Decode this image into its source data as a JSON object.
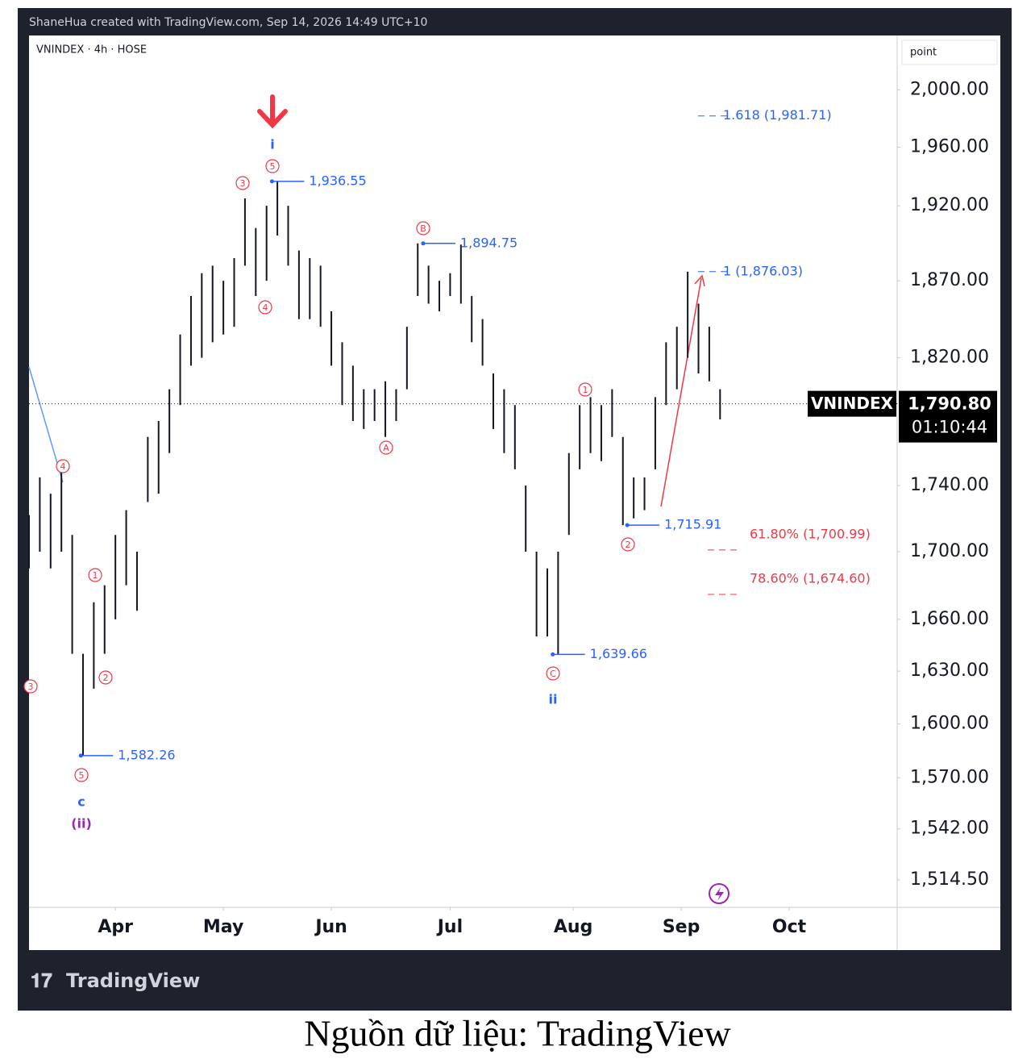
{
  "chart_data": {
    "type": "ohlc",
    "header": "ShaneHua created with TradingView.com, Sep 14, 2026 14:49 UTC+10",
    "symbol": "VNINDEX · 4h · HOSE",
    "axis_unit": "point",
    "logo": "TradingView",
    "log_scale": true,
    "color": "#131722",
    "high": [
      1722,
      1745,
      1735,
      1748,
      1710,
      1640,
      1670,
      1680,
      1710,
      1725,
      1700,
      1770,
      1780,
      1800,
      1835,
      1860,
      1875,
      1880,
      1870,
      1885,
      1925,
      1905,
      1920,
      1936.55,
      1920,
      1890,
      1885,
      1880,
      1850,
      1830,
      1815,
      1800,
      1800,
      1805,
      1800,
      1840,
      1894.75,
      1880,
      1870,
      1875,
      1894,
      1860,
      1845,
      1810,
      1800,
      1790,
      1740,
      1700,
      1690,
      1700,
      1760,
      1790,
      1795,
      1790,
      1800,
      1770,
      1745,
      1745,
      1795,
      1830,
      1840,
      1876,
      1855,
      1840,
      1800
    ],
    "low": [
      1690,
      1700,
      1690,
      1700,
      1640,
      1582.26,
      1620,
      1640,
      1660,
      1680,
      1665,
      1730,
      1735,
      1760,
      1790,
      1815,
      1820,
      1830,
      1835,
      1840,
      1880,
      1860,
      1870,
      1900,
      1880,
      1845,
      1845,
      1840,
      1815,
      1790,
      1780,
      1775,
      1780,
      1770,
      1780,
      1800,
      1860,
      1855,
      1850,
      1860,
      1855,
      1830,
      1815,
      1775,
      1760,
      1750,
      1700,
      1650,
      1650,
      1639.66,
      1710,
      1750,
      1760,
      1755,
      1770,
      1715.91,
      1720,
      1725,
      1750,
      1790,
      1800,
      1820,
      1810,
      1805,
      1781
    ],
    "xlim": [
      0,
      80.4
    ],
    "xticks": [
      {
        "value": 8,
        "label": "Apr"
      },
      {
        "value": 18,
        "label": "May"
      },
      {
        "value": 28,
        "label": "Jun"
      },
      {
        "value": 39,
        "label": "Jul"
      },
      {
        "value": 50.4,
        "label": "Aug"
      },
      {
        "value": 60.4,
        "label": "Sep"
      },
      {
        "value": 70.4,
        "label": "Oct"
      }
    ],
    "ylim": [
      1500,
      2038
    ],
    "yticks": [
      {
        "value": 2000,
        "label": "2,000.00"
      },
      {
        "value": 1960,
        "label": "1,960.00"
      },
      {
        "value": 1920,
        "label": "1,920.00"
      },
      {
        "value": 1870,
        "label": "1,870.00"
      },
      {
        "value": 1820,
        "label": "1,820.00"
      },
      {
        "value": 1740,
        "label": "1,740.00"
      },
      {
        "value": 1700,
        "label": "1,700.00"
      },
      {
        "value": 1660,
        "label": "1,660.00"
      },
      {
        "value": 1630,
        "label": "1,630.00"
      },
      {
        "value": 1600,
        "label": "1,600.00"
      },
      {
        "value": 1570,
        "label": "1,570.00"
      },
      {
        "value": 1542,
        "label": "1,542.00"
      },
      {
        "value": 1514.5,
        "label": "1,514.50"
      }
    ],
    "price_points": [
      {
        "index": 22.5,
        "value": 1936.55,
        "label": "1,936.55"
      },
      {
        "index": 36.5,
        "value": 1894.75,
        "label": "1,894.75"
      },
      {
        "index": 48.5,
        "value": 1639.66,
        "label": "1,639.66"
      },
      {
        "index": 55.4,
        "value": 1715.91,
        "label": "1,715.91"
      },
      {
        "index": 4.8,
        "value": 1582.26,
        "label": "1,582.26"
      }
    ],
    "fib_levels": [
      {
        "value": 1981.71,
        "label": "1.618 (1,981.71)",
        "color": "#2962ff"
      },
      {
        "value": 1876.03,
        "label": "1 (1,876.03)",
        "color": "#2962ff"
      },
      {
        "value": 1700.99,
        "label": "61.80% (1,700.99)",
        "color": "#f23645"
      },
      {
        "value": 1674.6,
        "label": "78.60% (1,674.60)",
        "color": "#f23645"
      }
    ],
    "wave_labels": [
      "3",
      "5",
      "i",
      "4",
      "B",
      "A",
      "1",
      "2",
      "C",
      "ii",
      "4",
      "1",
      "2",
      "5",
      "c",
      "(ii)",
      "3"
    ],
    "last": {
      "name": "VNINDEX",
      "value": 1790.8,
      "label": "1,790.80",
      "countdown": "01:10:44"
    }
  },
  "caption": "Nguồn dữ liệu: TradingView"
}
